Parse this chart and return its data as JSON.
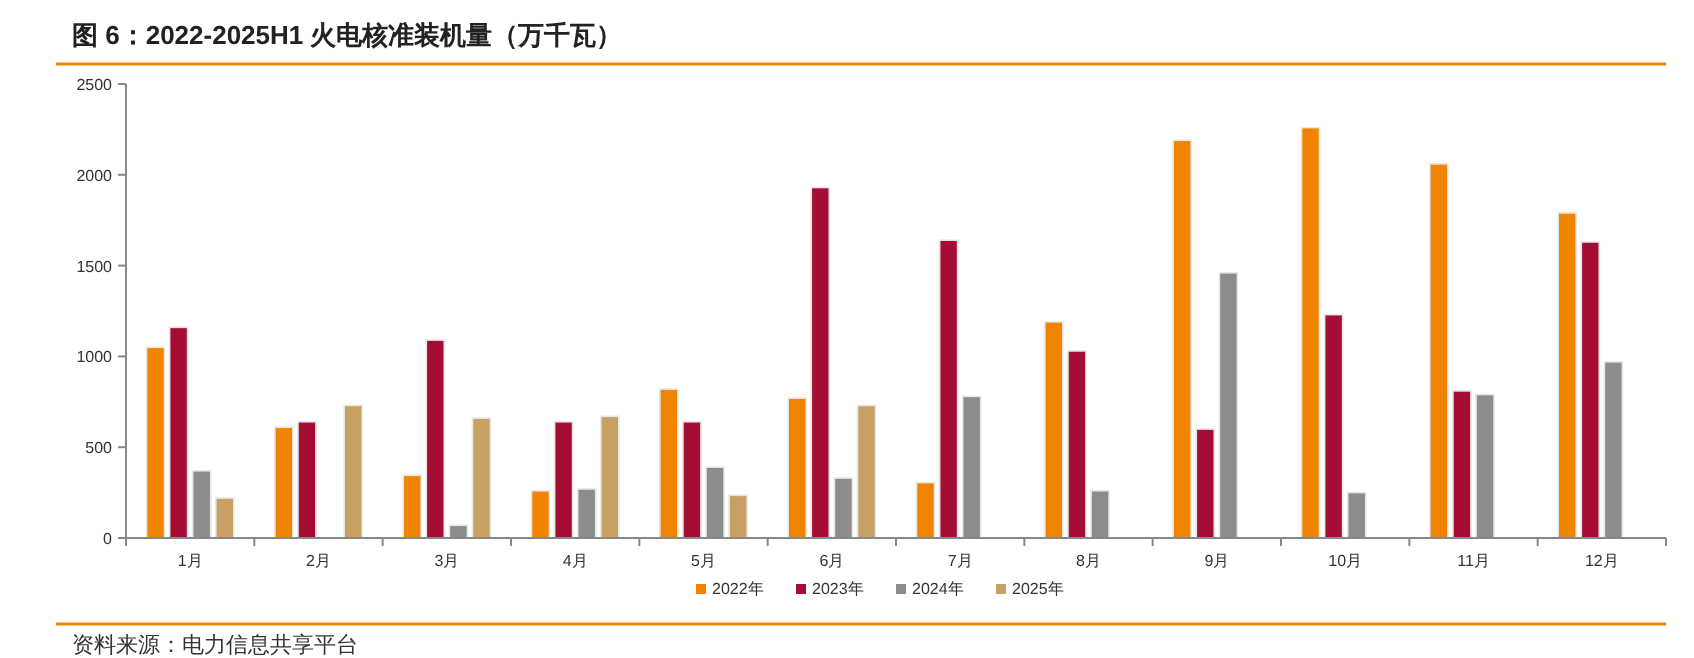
{
  "chart_data": {
    "type": "bar",
    "title": "图 6：2022-2025H1 火电核准装机量（万千瓦）",
    "categories": [
      "1月",
      "2月",
      "3月",
      "4月",
      "5月",
      "6月",
      "7月",
      "8月",
      "9月",
      "10月",
      "11月",
      "12月"
    ],
    "series": [
      {
        "name": "2022年",
        "color": "#f08300",
        "values": [
          1050,
          610,
          345,
          260,
          820,
          770,
          305,
          1190,
          2190,
          2260,
          2060,
          1790
        ]
      },
      {
        "name": "2023年",
        "color": "#a50d35",
        "values": [
          1160,
          640,
          1090,
          640,
          640,
          1930,
          1640,
          1030,
          600,
          1230,
          810,
          1630
        ]
      },
      {
        "name": "2024年",
        "color": "#8c8c8c",
        "values": [
          370,
          null,
          70,
          270,
          390,
          330,
          780,
          260,
          1460,
          250,
          790,
          970
        ]
      },
      {
        "name": "2025年",
        "color": "#c8a064",
        "values": [
          220,
          730,
          660,
          670,
          235,
          730,
          null,
          null,
          null,
          null,
          null,
          null
        ]
      }
    ],
    "ylim": [
      0,
      2500
    ],
    "yticks": [
      0,
      500,
      1000,
      1500,
      2000,
      2500
    ],
    "legend": "bottom",
    "grid": false,
    "annotations": [
      "资料来源：电力信息共享平台"
    ]
  }
}
